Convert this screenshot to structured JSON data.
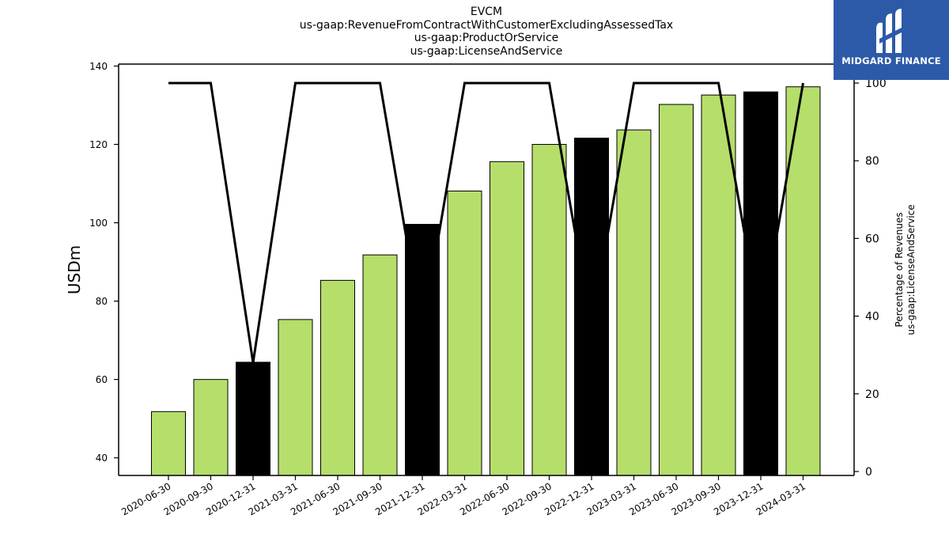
{
  "title_lines": [
    "EVCM",
    "us-gaap:RevenueFromContractWithCustomerExcludingAssessedTax",
    "us-gaap:ProductOrService",
    "us-gaap:LicenseAndService"
  ],
  "logo": {
    "text": "MIDGARD FINANCE",
    "background": "#2c5aa8"
  },
  "colors": {
    "bar_regular": "#b5de6b",
    "bar_highlight": "#000000",
    "line": "#000000"
  },
  "chart_data": {
    "type": "bar",
    "categories": [
      "2020-06-30",
      "2020-09-30",
      "2020-12-31",
      "2021-03-31",
      "2021-06-30",
      "2021-09-30",
      "2021-12-31",
      "2022-03-31",
      "2022-06-30",
      "2022-09-30",
      "2022-12-31",
      "2023-03-31",
      "2023-06-30",
      "2023-09-30",
      "2023-12-31",
      "2024-03-31"
    ],
    "series": [
      {
        "values": [
          51.8,
          60.0,
          64.4,
          75.3,
          85.3,
          91.8,
          99.6,
          108.1,
          115.6,
          120.0,
          121.6,
          123.7,
          130.2,
          132.6,
          133.4,
          134.7
        ]
      }
    ],
    "highlighted": [
      false,
      false,
      true,
      false,
      false,
      false,
      true,
      false,
      false,
      false,
      true,
      false,
      false,
      false,
      true,
      false
    ],
    "line_series": {
      "axis": "right",
      "values": [
        100,
        100,
        28,
        100,
        100,
        100,
        36,
        100,
        100,
        100,
        37,
        100,
        100,
        100,
        37,
        100
      ]
    },
    "ylabel": "USDm",
    "ylim": [
      35.5,
      140.5
    ],
    "yticks": [
      40,
      60,
      80,
      100,
      120,
      140
    ],
    "y2label_lines": [
      "Percentage of Revenues",
      "us-gaap:LicenseAndService"
    ],
    "y2lim": [
      0,
      100
    ],
    "y2ticks": [
      0,
      20,
      40,
      60,
      80,
      100
    ],
    "grid": false
  }
}
